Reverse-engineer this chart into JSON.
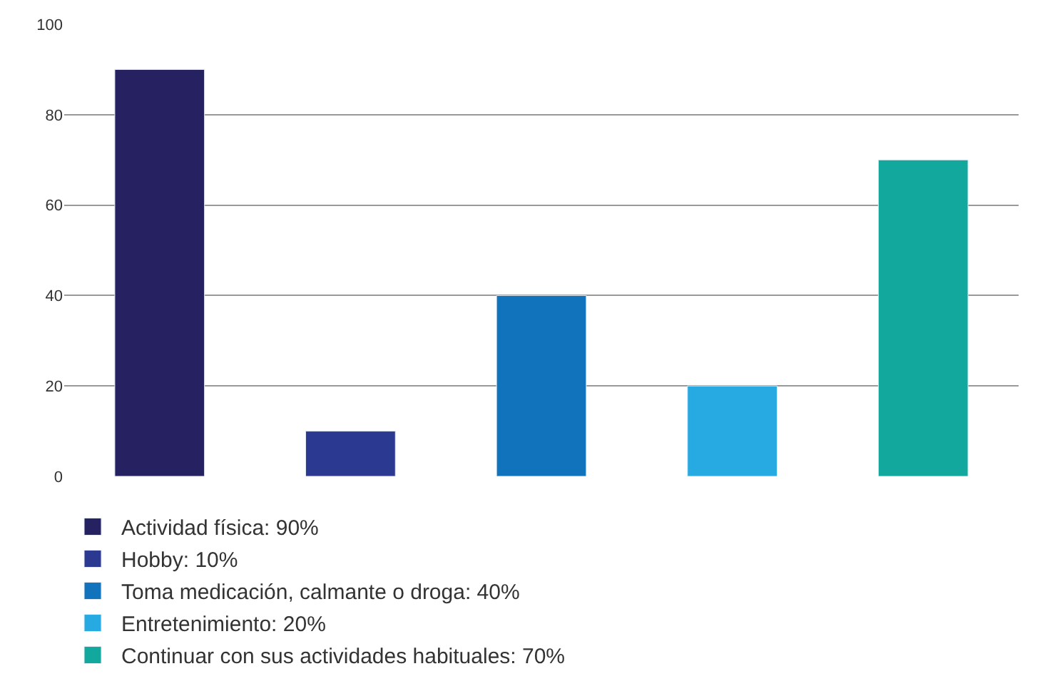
{
  "chart_data": {
    "type": "bar",
    "categories": [
      null,
      null,
      null,
      null,
      null
    ],
    "series": [
      {
        "name": "Actividad física: 90%",
        "color": "#262262",
        "values": [
          90,
          null,
          null,
          null,
          null
        ]
      },
      {
        "name": "Hobby: 10%",
        "color": "#2b3990",
        "values": [
          null,
          10,
          null,
          null,
          null
        ]
      },
      {
        "name": "Toma medicación, calmante o droga: 40%",
        "color": "#1273bd",
        "values": [
          null,
          null,
          40,
          null,
          null
        ]
      },
      {
        "name": "Entretenimiento: 20%",
        "color": "#27aae1",
        "values": [
          null,
          null,
          null,
          20,
          null
        ]
      },
      {
        "name": "Continuar con sus actividades habituales: 70%",
        "color": "#13a89e",
        "values": [
          null,
          null,
          null,
          null,
          70
        ]
      }
    ],
    "ylim": [
      0,
      100
    ],
    "yticks": [
      0,
      20,
      40,
      60,
      80,
      100
    ],
    "grid": "y",
    "legend": "bottom"
  }
}
